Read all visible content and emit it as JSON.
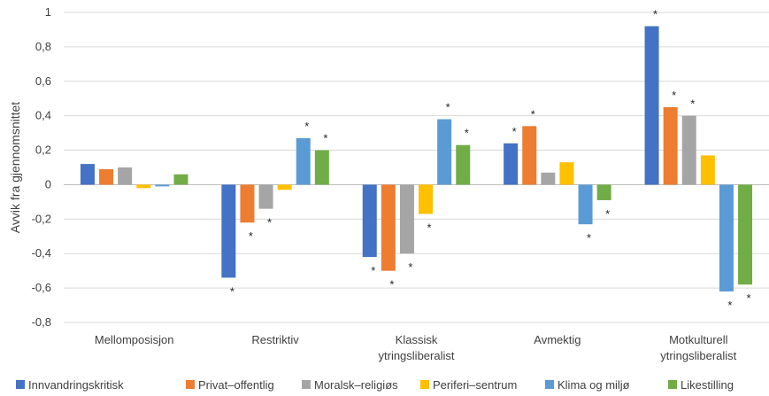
{
  "chart_data": {
    "type": "bar",
    "ylabel": "Avvik fra gjennomsnittet",
    "ylim": [
      -0.8,
      1
    ],
    "yticks": [
      "1",
      "0,8",
      "0,6",
      "0,4",
      "0,2",
      "0",
      "-0,2",
      "-0,4",
      "-0,6",
      "-0,8"
    ],
    "grid": true,
    "legend_position": "bottom",
    "categories": [
      [
        "Mellomposisjon"
      ],
      [
        "Restriktiv"
      ],
      [
        "Klassisk",
        "ytringsliberalist"
      ],
      [
        "Avmektig"
      ],
      [
        "Motkulturell",
        "ytringsliberalist"
      ]
    ],
    "series": [
      {
        "name": "Innvandringskritisk",
        "color": "#4472C4",
        "values": [
          0.12,
          -0.54,
          -0.42,
          0.24,
          0.92
        ],
        "significant": [
          false,
          true,
          true,
          true,
          true
        ]
      },
      {
        "name": "Privat–offentlig",
        "color": "#ED7D31",
        "values": [
          0.09,
          -0.22,
          -0.5,
          0.34,
          0.45
        ],
        "significant": [
          false,
          true,
          true,
          true,
          true
        ]
      },
      {
        "name": "Moralsk–religiøs",
        "color": "#A5A5A5",
        "values": [
          0.1,
          -0.14,
          -0.4,
          0.07,
          0.4
        ],
        "significant": [
          false,
          true,
          true,
          false,
          true
        ]
      },
      {
        "name": "Periferi–sentrum",
        "color": "#FFC000",
        "values": [
          -0.02,
          -0.03,
          -0.17,
          0.13,
          0.17
        ],
        "significant": [
          false,
          false,
          true,
          false,
          false
        ]
      },
      {
        "name": "Klima og miljø",
        "color": "#5B9BD5",
        "values": [
          -0.01,
          0.27,
          0.38,
          -0.23,
          -0.62
        ],
        "significant": [
          false,
          true,
          true,
          true,
          true
        ]
      },
      {
        "name": "Likestilling",
        "color": "#70AD47",
        "values": [
          0.06,
          0.2,
          0.23,
          -0.09,
          -0.58
        ],
        "significant": [
          false,
          true,
          true,
          true,
          true
        ]
      }
    ],
    "significance_marker": "*"
  }
}
